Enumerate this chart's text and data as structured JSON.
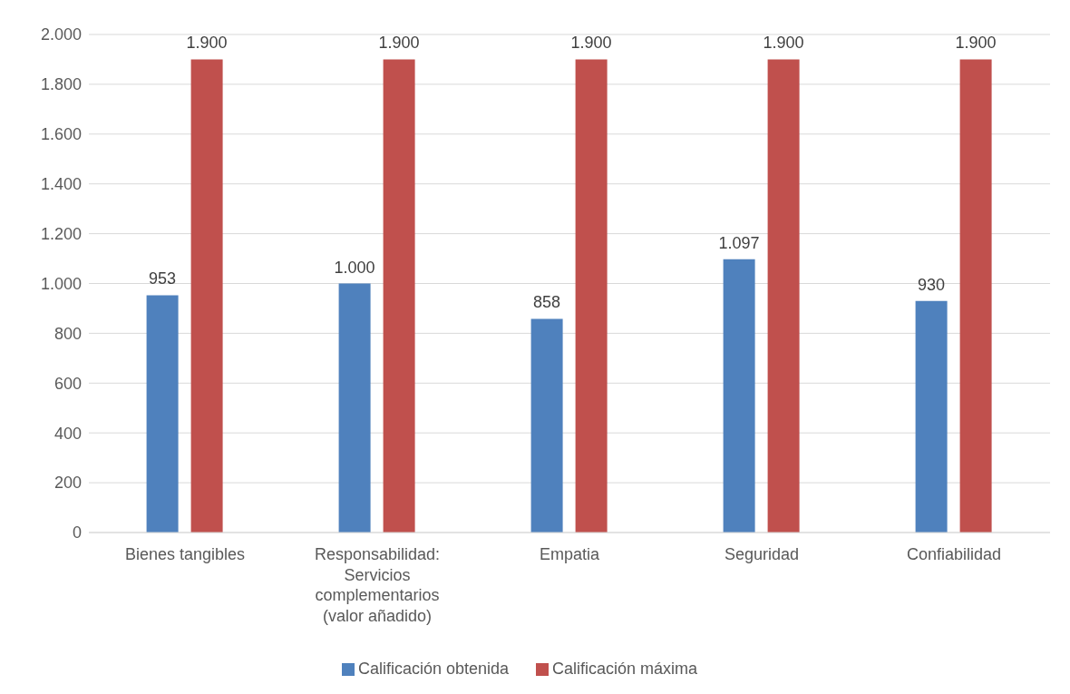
{
  "chart_data": {
    "type": "bar",
    "categories": [
      "Bienes tangibles",
      "Responsabilidad: Servicios complementarios (valor añadido)",
      "Empatia",
      "Seguridad",
      "Confiabilidad"
    ],
    "series": [
      {
        "name": "Calificación obtenida",
        "color": "#4f81bd",
        "values": [
          953,
          1000,
          858,
          1097,
          930
        ],
        "value_labels": [
          "953",
          "1.000",
          "858",
          "1.097",
          "930"
        ]
      },
      {
        "name": "Calificación máxima",
        "color": "#c0504d",
        "values": [
          1900,
          1900,
          1900,
          1900,
          1900
        ],
        "value_labels": [
          "1.900",
          "1.900",
          "1.900",
          "1.900",
          "1.900"
        ]
      }
    ],
    "ylim": [
      0,
      2000
    ],
    "yticks": [
      {
        "value": 0,
        "label": "0"
      },
      {
        "value": 200,
        "label": "200"
      },
      {
        "value": 400,
        "label": "400"
      },
      {
        "value": 600,
        "label": "600"
      },
      {
        "value": 800,
        "label": "800"
      },
      {
        "value": 1000,
        "label": "1.000"
      },
      {
        "value": 1200,
        "label": "1.200"
      },
      {
        "value": 1400,
        "label": "1.400"
      },
      {
        "value": 1600,
        "label": "1.600"
      },
      {
        "value": 1800,
        "label": "1.800"
      },
      {
        "value": 2000,
        "label": "2.000"
      }
    ],
    "grid": "y",
    "legend": "bottom"
  }
}
